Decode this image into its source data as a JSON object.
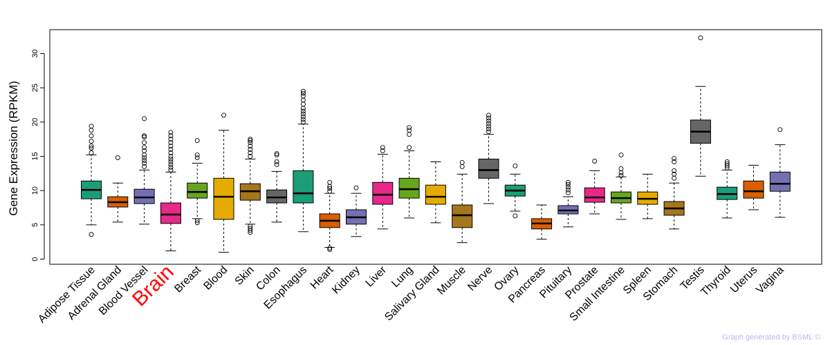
{
  "chart_data": {
    "type": "box",
    "ylabel": "Gene Expression (RPKM)",
    "ylim": [
      0,
      33.5
    ],
    "yticks": [
      0,
      5,
      10,
      15,
      20,
      25,
      30
    ],
    "highlight": "Brain",
    "highlight_color": "#ff0000",
    "footer": "Graph generated by BSML ©",
    "categories": [
      "Adipose Tissue",
      "Adrenal Gland",
      "Blood Vessel",
      "Brain",
      "Breast",
      "Blood",
      "Skin",
      "Colon",
      "Esophagus",
      "Heart",
      "Kidney",
      "Liver",
      "Lung",
      "Salivary Gland",
      "Muscle",
      "Nerve",
      "Ovary",
      "Pancreas",
      "Pituitary",
      "Prostate",
      "Small Intestine",
      "Spleen",
      "Stomach",
      "Testis",
      "Thyroid",
      "Uterus",
      "Vagina"
    ],
    "boxes": [
      {
        "tissue": "Adipose Tissue",
        "color": "#1b9e77",
        "whisker_low": 5.0,
        "q1": 8.8,
        "median": 10.1,
        "q3": 11.4,
        "whisker_high": 15.2,
        "outliers": [
          3.6,
          15.5,
          16.2,
          16.5,
          17.2,
          18.0,
          18.8,
          19.4
        ]
      },
      {
        "tissue": "Adrenal Gland",
        "color": "#d95f02",
        "whisker_low": 5.4,
        "q1": 7.6,
        "median": 8.3,
        "q3": 9.1,
        "whisker_high": 11.1,
        "outliers": [
          14.8
        ]
      },
      {
        "tissue": "Blood Vessel",
        "color": "#7570b3",
        "whisker_low": 5.1,
        "q1": 8.1,
        "median": 9.0,
        "q3": 10.2,
        "whisker_high": 13.0,
        "outliers": [
          13.5,
          14.0,
          14.4,
          14.8,
          15.2,
          15.8,
          16.3,
          17.0,
          17.8,
          18.0,
          20.5
        ]
      },
      {
        "tissue": "Brain",
        "color": "#e7298a",
        "whisker_low": 1.2,
        "q1": 5.2,
        "median": 6.5,
        "q3": 8.2,
        "whisker_high": 12.7,
        "outliers": [
          13.0,
          13.4,
          13.8,
          14.2,
          14.6,
          15.0,
          15.5,
          16.0,
          16.5,
          17.0,
          17.5,
          18.0,
          18.5
        ]
      },
      {
        "tissue": "Breast",
        "color": "#66a61e",
        "whisker_low": 5.9,
        "q1": 8.9,
        "median": 9.8,
        "q3": 11.1,
        "whisker_high": 14.0,
        "outliers": [
          5.6,
          5.3,
          14.8,
          15.2,
          17.3
        ]
      },
      {
        "tissue": "Blood",
        "color": "#e6ab02",
        "whisker_low": 1.0,
        "q1": 5.8,
        "median": 9.1,
        "q3": 11.8,
        "whisker_high": 18.8,
        "outliers": [
          21.0
        ]
      },
      {
        "tissue": "Skin",
        "color": "#a6761d",
        "whisker_low": 5.1,
        "q1": 8.6,
        "median": 9.9,
        "q3": 11.0,
        "whisker_high": 14.6,
        "outliers": [
          3.9,
          4.2,
          4.5,
          4.8,
          15.0,
          15.5,
          16.0,
          16.5,
          17.0,
          17.3,
          17.5
        ]
      },
      {
        "tissue": "Colon",
        "color": "#666666",
        "whisker_low": 5.4,
        "q1": 8.2,
        "median": 9.0,
        "q3": 10.1,
        "whisker_high": 12.8,
        "outliers": [
          13.8,
          14.2,
          15.2,
          15.4
        ]
      },
      {
        "tissue": "Esophagus",
        "color": "#1b9e77",
        "whisker_low": 4.0,
        "q1": 8.2,
        "median": 9.6,
        "q3": 12.9,
        "whisker_high": 19.7,
        "outliers": [
          20.0,
          20.4,
          20.8,
          21.2,
          21.6,
          22.0,
          22.6,
          23.2,
          23.8,
          24.2,
          24.5
        ]
      },
      {
        "tissue": "Heart",
        "color": "#d95f02",
        "whisker_low": 1.7,
        "q1": 4.6,
        "median": 5.6,
        "q3": 6.6,
        "whisker_high": 9.6,
        "outliers": [
          1.4,
          1.6,
          9.9,
          10.3,
          10.6,
          11.2
        ]
      },
      {
        "tissue": "Kidney",
        "color": "#7570b3",
        "whisker_low": 3.3,
        "q1": 5.1,
        "median": 6.1,
        "q3": 7.2,
        "whisker_high": 9.6,
        "outliers": [
          10.4
        ]
      },
      {
        "tissue": "Liver",
        "color": "#e7298a",
        "whisker_low": 4.4,
        "q1": 8.0,
        "median": 9.4,
        "q3": 11.2,
        "whisker_high": 15.3,
        "outliers": [
          15.8,
          16.3
        ]
      },
      {
        "tissue": "Lung",
        "color": "#66a61e",
        "whisker_low": 6.0,
        "q1": 8.9,
        "median": 10.2,
        "q3": 11.8,
        "whisker_high": 15.8,
        "outliers": [
          16.3,
          18.2,
          18.8,
          19.2
        ]
      },
      {
        "tissue": "Salivary Gland",
        "color": "#e6ab02",
        "whisker_low": 5.3,
        "q1": 8.0,
        "median": 9.1,
        "q3": 10.8,
        "whisker_high": 14.2,
        "outliers": []
      },
      {
        "tissue": "Muscle",
        "color": "#a6761d",
        "whisker_low": 2.4,
        "q1": 4.6,
        "median": 6.4,
        "q3": 7.9,
        "whisker_high": 12.4,
        "outliers": [
          13.5,
          14.1
        ]
      },
      {
        "tissue": "Nerve",
        "color": "#666666",
        "whisker_low": 8.1,
        "q1": 11.8,
        "median": 13.0,
        "q3": 14.6,
        "whisker_high": 18.2,
        "outliers": [
          18.6,
          19.0,
          19.4,
          19.8,
          20.2,
          20.6,
          21.0
        ]
      },
      {
        "tissue": "Ovary",
        "color": "#1b9e77",
        "whisker_low": 7.0,
        "q1": 9.2,
        "median": 10.0,
        "q3": 10.8,
        "whisker_high": 12.4,
        "outliers": [
          6.3,
          13.6
        ]
      },
      {
        "tissue": "Pancreas",
        "color": "#d95f02",
        "whisker_low": 2.9,
        "q1": 4.4,
        "median": 5.2,
        "q3": 5.9,
        "whisker_high": 7.9,
        "outliers": []
      },
      {
        "tissue": "Pituitary",
        "color": "#7570b3",
        "whisker_low": 4.7,
        "q1": 6.6,
        "median": 7.1,
        "q3": 7.8,
        "whisker_high": 9.1,
        "outliers": [
          9.7,
          10.1,
          10.5,
          10.9,
          11.2
        ]
      },
      {
        "tissue": "Prostate",
        "color": "#e7298a",
        "whisker_low": 6.6,
        "q1": 8.3,
        "median": 9.0,
        "q3": 10.4,
        "whisker_high": 12.9,
        "outliers": [
          14.3
        ]
      },
      {
        "tissue": "Small Intestine",
        "color": "#66a61e",
        "whisker_low": 5.8,
        "q1": 8.2,
        "median": 8.9,
        "q3": 9.8,
        "whisker_high": 12.0,
        "outliers": [
          12.2,
          12.6,
          13.2,
          15.2
        ]
      },
      {
        "tissue": "Spleen",
        "color": "#e6ab02",
        "whisker_low": 5.9,
        "q1": 8.0,
        "median": 8.8,
        "q3": 9.8,
        "whisker_high": 12.4,
        "outliers": []
      },
      {
        "tissue": "Stomach",
        "color": "#a6761d",
        "whisker_low": 4.4,
        "q1": 6.4,
        "median": 7.4,
        "q3": 8.4,
        "whisker_high": 11.1,
        "outliers": [
          11.8,
          12.4,
          12.9,
          14.2,
          14.7
        ]
      },
      {
        "tissue": "Testis",
        "color": "#666666",
        "whisker_low": 12.1,
        "q1": 16.9,
        "median": 18.6,
        "q3": 20.3,
        "whisker_high": 25.2,
        "outliers": [
          32.3
        ]
      },
      {
        "tissue": "Thyroid",
        "color": "#1b9e77",
        "whisker_low": 6.0,
        "q1": 8.7,
        "median": 9.5,
        "q3": 10.5,
        "whisker_high": 13.0,
        "outliers": [
          13.3,
          13.6,
          13.9,
          14.2
        ]
      },
      {
        "tissue": "Uterus",
        "color": "#d95f02",
        "whisker_low": 7.2,
        "q1": 8.9,
        "median": 9.9,
        "q3": 11.4,
        "whisker_high": 13.7,
        "outliers": []
      },
      {
        "tissue": "Vagina",
        "color": "#7570b3",
        "whisker_low": 6.1,
        "q1": 9.9,
        "median": 11.0,
        "q3": 12.7,
        "whisker_high": 16.7,
        "outliers": [
          18.9
        ]
      }
    ]
  }
}
